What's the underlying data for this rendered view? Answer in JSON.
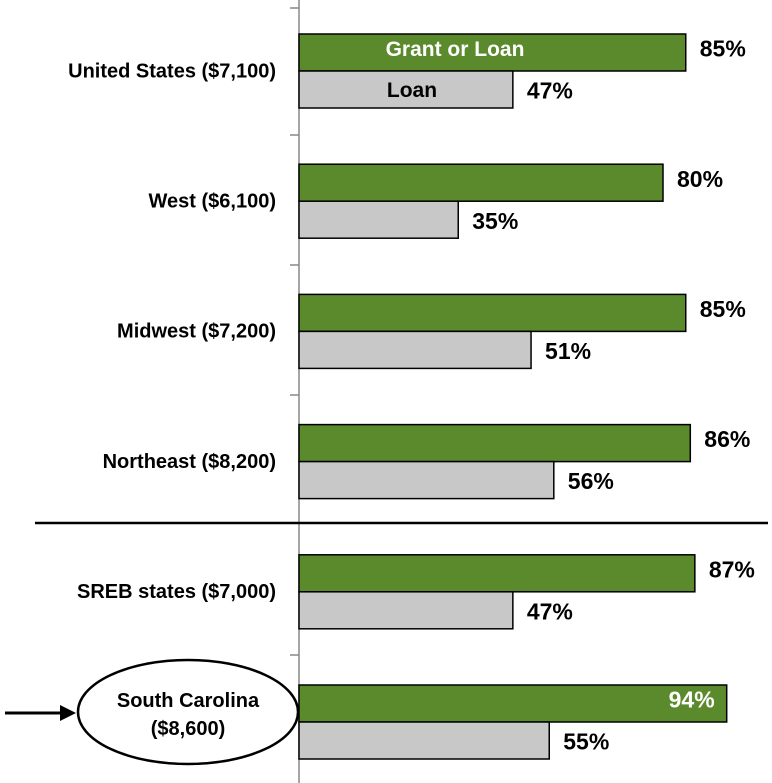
{
  "chart_data": {
    "type": "barh",
    "categories": [
      "United States ($7,100)",
      "West ($6,100)",
      "Midwest ($7,200)",
      "Northeast ($8,200)",
      "SREB states ($7,000)",
      "South Carolina ($8,600)"
    ],
    "series": [
      {
        "name": "Grant or Loan",
        "color": "#5a8a2c",
        "values": [
          85,
          80,
          85,
          86,
          87,
          94
        ],
        "value_labels": [
          "85%",
          "80%",
          "85%",
          "86%",
          "87%",
          "94%"
        ]
      },
      {
        "name": "Loan",
        "color": "#c8c8c8",
        "values": [
          47,
          35,
          51,
          56,
          47,
          55
        ],
        "value_labels": [
          "47%",
          "35%",
          "51%",
          "56%",
          "47%",
          "55%"
        ]
      }
    ],
    "xlim": [
      0,
      100
    ]
  }
}
